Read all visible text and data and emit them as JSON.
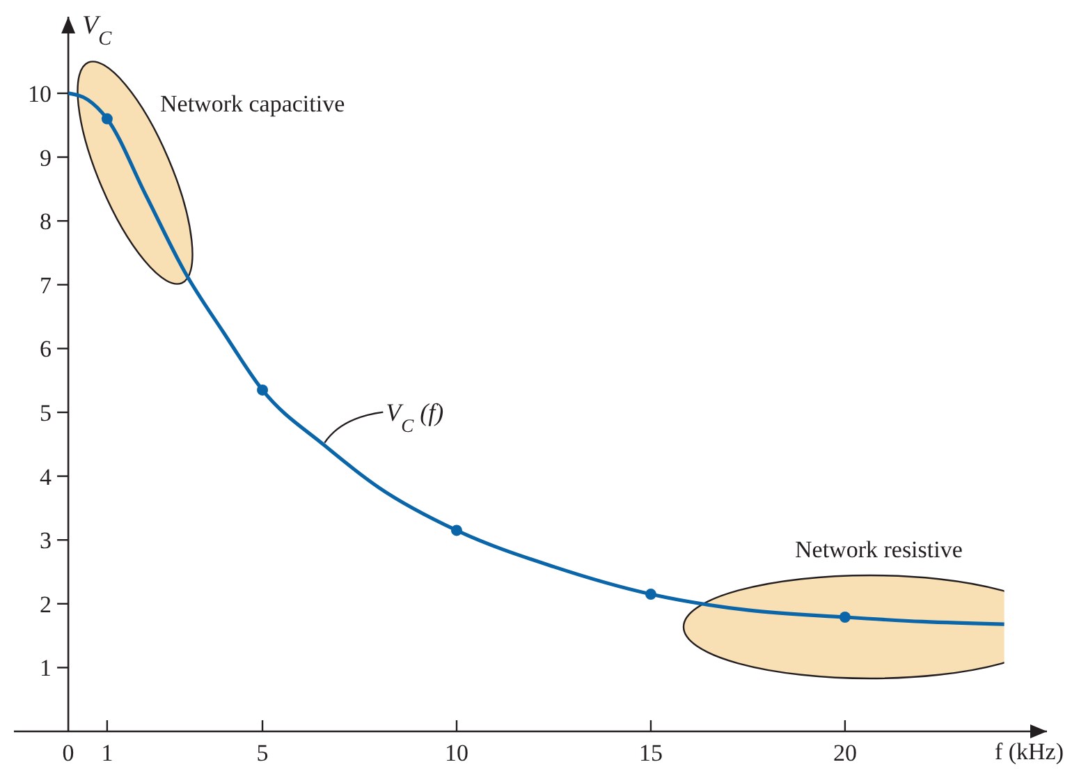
{
  "chart_data": {
    "type": "line",
    "xlabel": "f (kHz)",
    "ylabel": "V$_{C}$",
    "xlim": [
      -1.4,
      25.2
    ],
    "ylim": [
      0,
      11.2
    ],
    "xticks": [
      0,
      1,
      5,
      10,
      15,
      20
    ],
    "yticks": [
      1,
      2,
      3,
      4,
      5,
      6,
      7,
      8,
      9,
      10
    ],
    "series": [
      {
        "color": "#0a66a8",
        "marker": "none",
        "line_style": "solid",
        "x": [
          0,
          0.5,
          1,
          2,
          3,
          4,
          5,
          6.6,
          8,
          10,
          12.5,
          15,
          17.5,
          20,
          22,
          24.1
        ],
        "values": [
          10,
          9.9,
          9.6,
          8.4,
          7.2,
          6.25,
          5.35,
          4.48,
          3.82,
          3.15,
          2.58,
          2.15,
          1.9,
          1.79,
          1.72,
          1.68
        ]
      },
      {
        "type": "scatter",
        "color": "#0a66a8",
        "marker": "circle",
        "x": [
          1,
          5,
          10,
          15,
          20
        ],
        "values": [
          9.6,
          5.35,
          3.15,
          2.15,
          1.79
        ]
      }
    ],
    "annotations": [
      "Network capacitive",
      "Network resistive",
      {
        "text": "V$_{C}$ (f)",
        "x": 6.6,
        "y": 4.48
      }
    ]
  }
}
